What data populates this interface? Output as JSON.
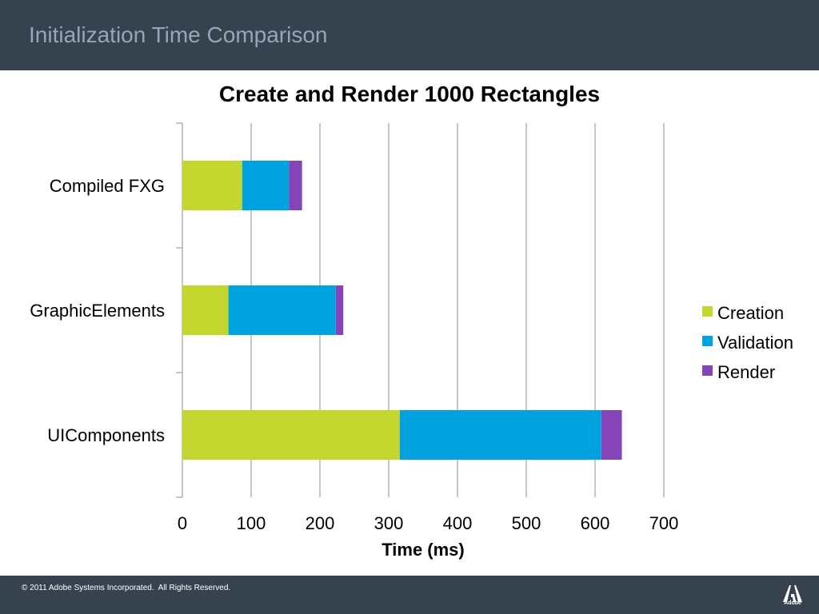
{
  "slide": {
    "title": "Initialization Time Comparison",
    "footer": "© 2011 Adobe Systems Incorporated.  All Rights Reserved.",
    "logo_text": "Adobe"
  },
  "colors": {
    "header_bg": "#36434e",
    "title_text": "#93a7bb",
    "Creation": "#c3d72f",
    "Validation": "#00a3e0",
    "Render": "#8545b8"
  },
  "chart_data": {
    "type": "bar",
    "orientation": "horizontal",
    "stacked": true,
    "title": "Create and Render 1000 Rectangles",
    "xlabel": "Time (ms)",
    "ylabel": "",
    "xlim": [
      0,
      700
    ],
    "x_ticks": [
      "0",
      "100",
      "200",
      "300",
      "400",
      "500",
      "600",
      "700"
    ],
    "grid": true,
    "legend_position": "right",
    "categories": [
      "Compiled FXG",
      "GraphicElements",
      "UIComponents"
    ],
    "series": [
      {
        "name": "Creation",
        "values": [
          87,
          67,
          316
        ]
      },
      {
        "name": "Validation",
        "values": [
          68,
          156,
          293
        ]
      },
      {
        "name": "Render",
        "values": [
          19,
          11,
          30
        ]
      }
    ]
  }
}
